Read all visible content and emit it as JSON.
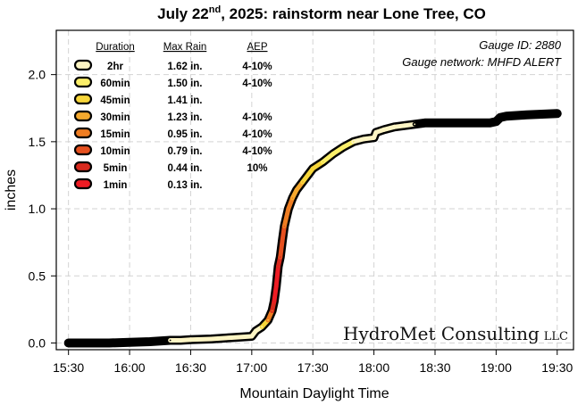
{
  "chart_data": {
    "type": "line",
    "title": "July 22nd, 2025: rainstorm near Lone Tree, CO",
    "title_parts": {
      "pre": "July 22",
      "sup": "nd",
      "post": ", 2025: rainstorm near Lone Tree, CO"
    },
    "xlabel": "Mountain Daylight Time",
    "ylabel": "inches",
    "x_ticks": [
      "15:30",
      "16:00",
      "16:30",
      "17:00",
      "17:30",
      "18:00",
      "18:30",
      "19:00",
      "19:30"
    ],
    "y_ticks": [
      "0.0",
      "0.5",
      "1.0",
      "1.5",
      "2.0"
    ],
    "xlim": [
      "15:24",
      "19:38"
    ],
    "ylim": [
      -0.05,
      2.33
    ],
    "grid": true,
    "gauge_id": "Gauge ID: 2880",
    "gauge_network": "Gauge network: MHFD ALERT",
    "brand": {
      "name": "HydroMet Consulting",
      "suffix": "LLC"
    },
    "legend": {
      "headers": [
        "Duration",
        "Max Rain",
        "AEP"
      ],
      "rows": [
        {
          "duration": "2hr",
          "max_rain": "1.62 in.",
          "aep": "4-10%",
          "color": "#fdf5c4"
        },
        {
          "duration": "60min",
          "max_rain": "1.50 in.",
          "aep": "4-10%",
          "color": "#fbef6a"
        },
        {
          "duration": "45min",
          "max_rain": "1.41 in.",
          "aep": "",
          "color": "#f7d63a"
        },
        {
          "duration": "30min",
          "max_rain": "1.23 in.",
          "aep": "4-10%",
          "color": "#f5a92e"
        },
        {
          "duration": "15min",
          "max_rain": "0.95 in.",
          "aep": "4-10%",
          "color": "#ee7d22"
        },
        {
          "duration": "10min",
          "max_rain": "0.79 in.",
          "aep": "4-10%",
          "color": "#e6501f"
        },
        {
          "duration": "5min",
          "max_rain": "0.44 in.",
          "aep": "10%",
          "color": "#d82a1e"
        },
        {
          "duration": "1min",
          "max_rain": "0.13 in.",
          "aep": "",
          "color": "#ee1c24"
        }
      ]
    },
    "series": [
      {
        "name": "cumulative rainfall",
        "points": [
          [
            "15:30",
            0.0,
            "#000000"
          ],
          [
            "15:40",
            0.0,
            "#000000"
          ],
          [
            "15:50",
            0.0,
            "#000000"
          ],
          [
            "16:00",
            0.005,
            "#000000"
          ],
          [
            "16:10",
            0.01,
            "#000000"
          ],
          [
            "16:20",
            0.02,
            "#000000"
          ],
          [
            "16:25",
            0.02,
            "#fdf5c4"
          ],
          [
            "16:30",
            0.025,
            "#fdf5c4"
          ],
          [
            "16:40",
            0.03,
            "#fdf5c4"
          ],
          [
            "16:50",
            0.04,
            "#fdf5c4"
          ],
          [
            "17:00",
            0.05,
            "#fdf5c4"
          ],
          [
            "17:02",
            0.09,
            "#fdf5c4"
          ],
          [
            "17:05",
            0.12,
            "#fdf5c4"
          ],
          [
            "17:08",
            0.17,
            "#f7d63a"
          ],
          [
            "17:10",
            0.24,
            "#ee7d22"
          ],
          [
            "17:11",
            0.31,
            "#d82a1e"
          ],
          [
            "17:12",
            0.42,
            "#ee1c24"
          ],
          [
            "17:13",
            0.57,
            "#ee1c24"
          ],
          [
            "17:14",
            0.64,
            "#d82a1e"
          ],
          [
            "17:15",
            0.76,
            "#e6501f"
          ],
          [
            "17:16",
            0.87,
            "#e6501f"
          ],
          [
            "17:18",
            1.0,
            "#ee7d22"
          ],
          [
            "17:20",
            1.08,
            "#ee7d22"
          ],
          [
            "17:22",
            1.14,
            "#f5a92e"
          ],
          [
            "17:25",
            1.2,
            "#f5a92e"
          ],
          [
            "17:28",
            1.26,
            "#f7d63a"
          ],
          [
            "17:30",
            1.3,
            "#f7d63a"
          ],
          [
            "17:35",
            1.35,
            "#f7d63a"
          ],
          [
            "17:40",
            1.41,
            "#fbef6a"
          ],
          [
            "17:45",
            1.46,
            "#fbef6a"
          ],
          [
            "17:50",
            1.5,
            "#fbef6a"
          ],
          [
            "17:55",
            1.52,
            "#fdf5c4"
          ],
          [
            "18:00",
            1.53,
            "#fdf5c4"
          ],
          [
            "18:01",
            1.57,
            "#fdf5c4"
          ],
          [
            "18:05",
            1.59,
            "#fdf5c4"
          ],
          [
            "18:10",
            1.61,
            "#fdf5c4"
          ],
          [
            "18:15",
            1.62,
            "#fdf5c4"
          ],
          [
            "18:20",
            1.63,
            "#fdf5c4"
          ],
          [
            "18:25",
            1.64,
            "#000000"
          ],
          [
            "18:30",
            1.64,
            "#000000"
          ],
          [
            "18:40",
            1.64,
            "#000000"
          ],
          [
            "18:50",
            1.64,
            "#000000"
          ],
          [
            "18:57",
            1.64,
            "#000000"
          ],
          [
            "19:00",
            1.65,
            "#000000"
          ],
          [
            "19:02",
            1.68,
            "#000000"
          ],
          [
            "19:05",
            1.69,
            "#000000"
          ],
          [
            "19:15",
            1.7,
            "#000000"
          ],
          [
            "19:30",
            1.71,
            "#000000"
          ]
        ]
      }
    ]
  }
}
